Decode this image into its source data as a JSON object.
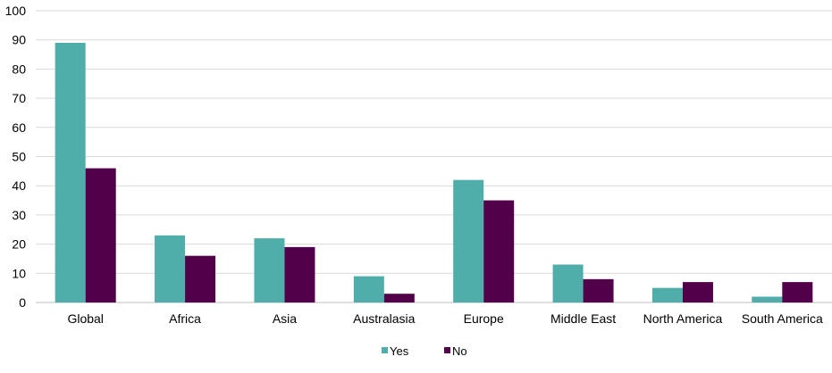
{
  "chart_data": {
    "type": "bar",
    "title": "",
    "xlabel": "",
    "ylabel": "",
    "ylim": [
      0,
      100
    ],
    "yticks": [
      0,
      10,
      20,
      30,
      40,
      50,
      60,
      70,
      80,
      90,
      100
    ],
    "grid": true,
    "legend_position": "bottom-center",
    "categories": [
      "Global",
      "Africa",
      "Asia",
      "Australasia",
      "Europe",
      "Middle East",
      "North America",
      "South America"
    ],
    "series": [
      {
        "name": "Yes",
        "color": "#4fadaa",
        "values": [
          89,
          23,
          22,
          9,
          42,
          13,
          5,
          2
        ]
      },
      {
        "name": "No",
        "color": "#510049",
        "values": [
          46,
          16,
          19,
          3,
          35,
          8,
          7,
          7
        ]
      }
    ]
  }
}
